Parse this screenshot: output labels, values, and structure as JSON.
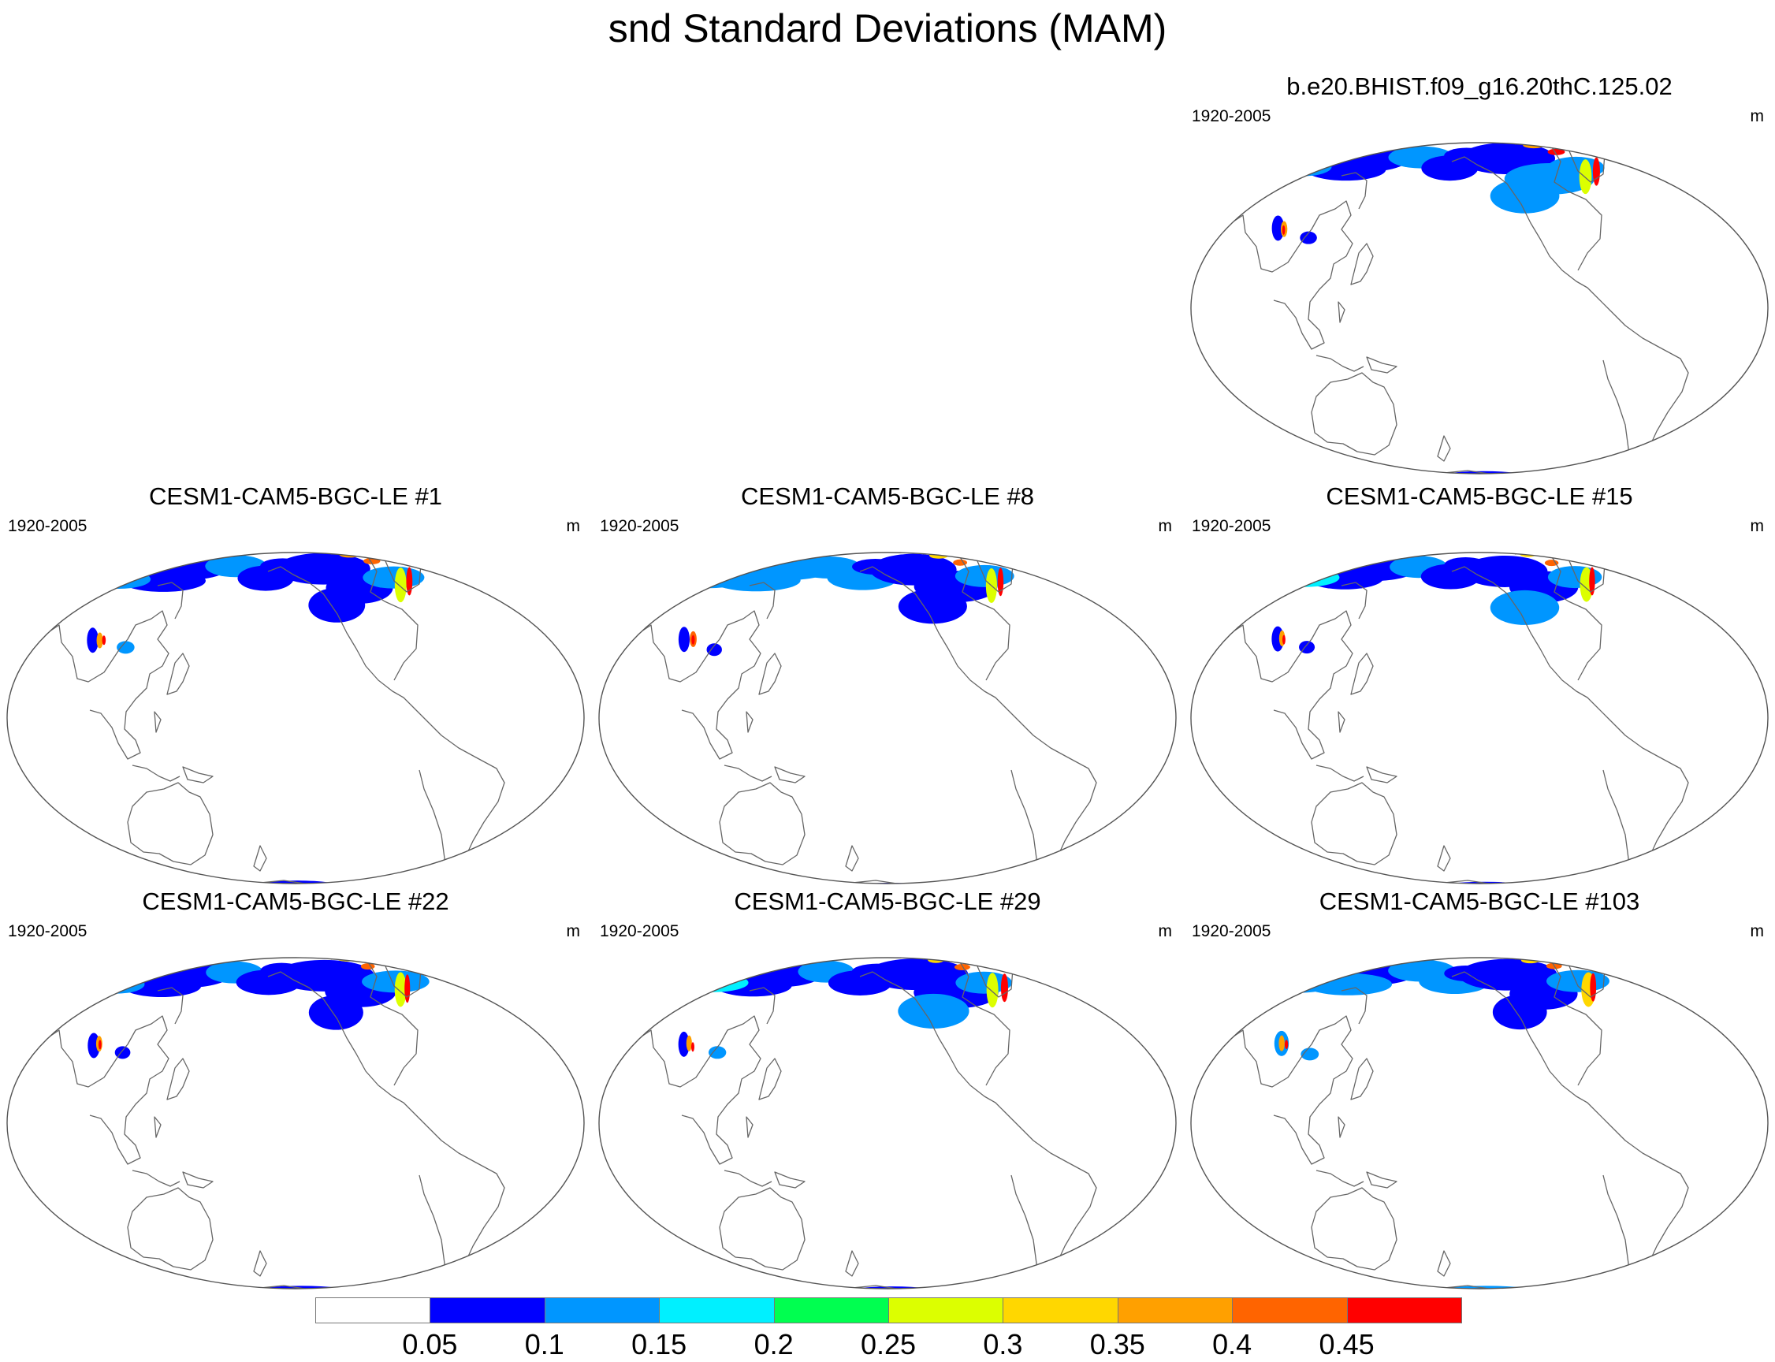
{
  "title": "snd Standard Deviations (MAM)",
  "panels": [
    {
      "title": "b.e20.BHIST.f09_g16.20thC.125.02",
      "period": "1920-2005",
      "units": "m",
      "variant": 0
    },
    {
      "title": "CESM1-CAM5-BGC-LE #1",
      "period": "1920-2005",
      "units": "m",
      "variant": 1
    },
    {
      "title": "CESM1-CAM5-BGC-LE #8",
      "period": "1920-2005",
      "units": "m",
      "variant": 2
    },
    {
      "title": "CESM1-CAM5-BGC-LE #15",
      "period": "1920-2005",
      "units": "m",
      "variant": 3
    },
    {
      "title": "CESM1-CAM5-BGC-LE #22",
      "period": "1920-2005",
      "units": "m",
      "variant": 4
    },
    {
      "title": "CESM1-CAM5-BGC-LE #29",
      "period": "1920-2005",
      "units": "m",
      "variant": 5
    },
    {
      "title": "CESM1-CAM5-BGC-LE #103",
      "period": "1920-2005",
      "units": "m",
      "variant": 6
    }
  ],
  "colorbar": {
    "labels": [
      "0.05",
      "0.1",
      "0.15",
      "0.2",
      "0.25",
      "0.3",
      "0.35",
      "0.4",
      "0.45"
    ],
    "colors": [
      "#ffffff",
      "#0000ff",
      "#0096ff",
      "#00f0ff",
      "#00ff50",
      "#dcff00",
      "#ffd700",
      "#ffa000",
      "#ff6400",
      "#ff0000"
    ]
  }
}
